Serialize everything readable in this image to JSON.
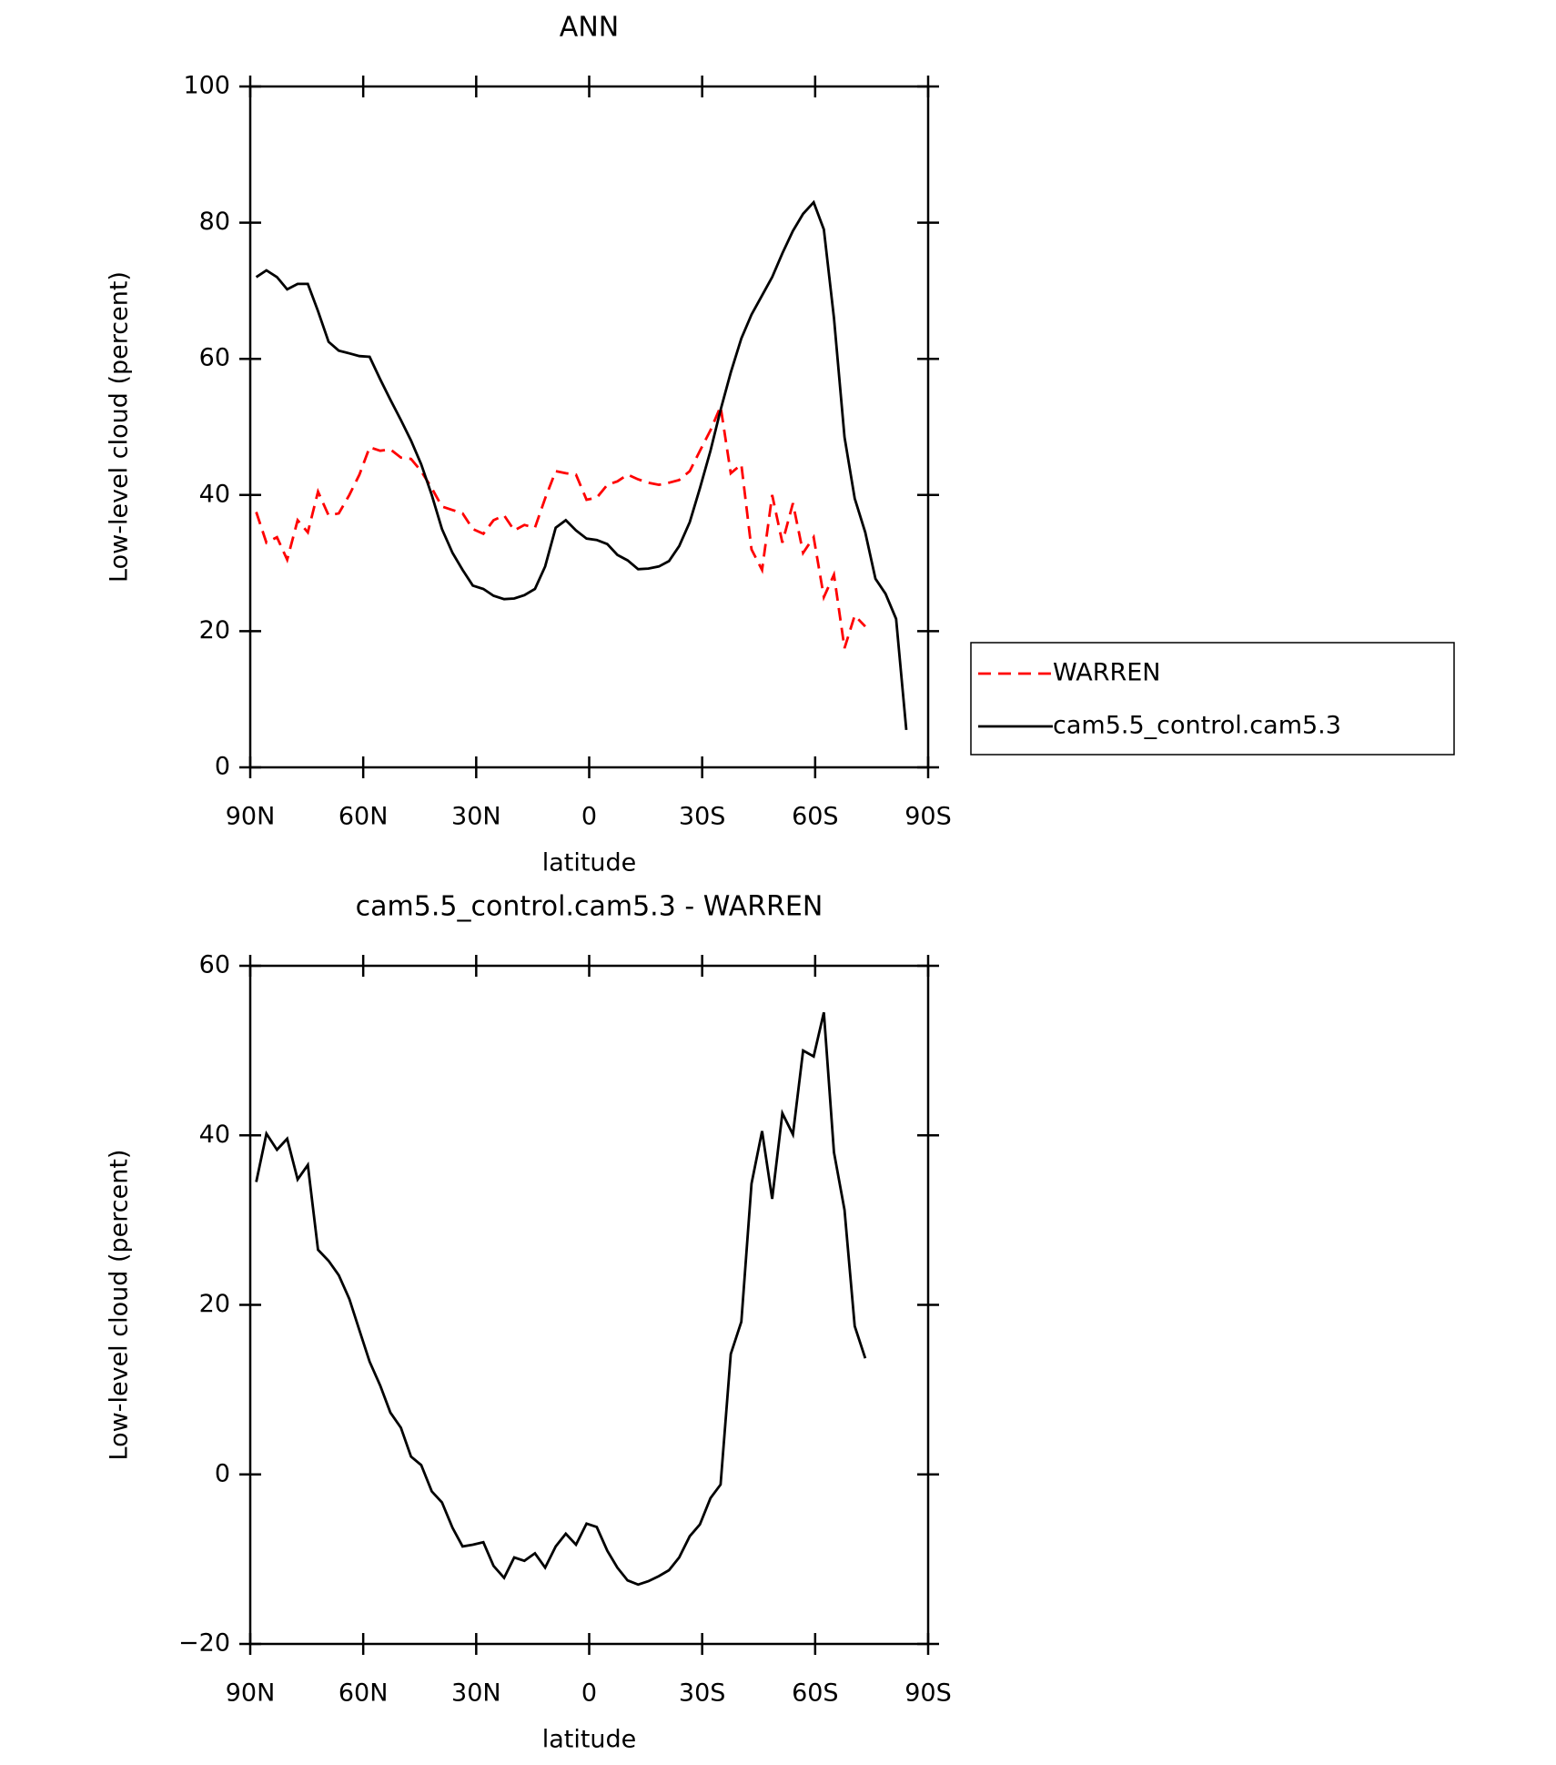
{
  "chart_data": [
    {
      "type": "line",
      "title": "ANN",
      "xlabel": "latitude",
      "ylabel": "Low-level cloud (percent)",
      "xlim": [
        90,
        -90
      ],
      "ylim": [
        0,
        100
      ],
      "xticks": [
        {
          "value": 90,
          "label": "90N"
        },
        {
          "value": 60,
          "label": "60N"
        },
        {
          "value": 30,
          "label": "30N"
        },
        0,
        {
          "value": -30,
          "label": "30S"
        },
        {
          "value": -60,
          "label": "60S"
        },
        {
          "value": -90,
          "label": "90S"
        }
      ],
      "yticks": [
        0,
        20,
        40,
        60,
        80,
        100
      ],
      "legend": "right",
      "x": [
        88.4,
        85.7,
        82.9,
        80.2,
        77.4,
        74.7,
        72.0,
        69.2,
        66.5,
        63.7,
        61.0,
        58.3,
        55.5,
        52.8,
        50.0,
        47.3,
        44.6,
        41.8,
        39.1,
        36.3,
        33.6,
        30.9,
        28.1,
        25.4,
        22.6,
        19.9,
        17.2,
        14.4,
        11.7,
        8.9,
        6.2,
        3.5,
        0.7,
        -2.0,
        -4.8,
        -7.5,
        -10.2,
        -13.0,
        -15.7,
        -18.5,
        -21.2,
        -23.9,
        -26.7,
        -29.4,
        -32.2,
        -34.9,
        -37.6,
        -40.4,
        -43.1,
        -45.9,
        -48.6,
        -51.3,
        -54.1,
        -56.8,
        -59.6,
        -62.3,
        -65.0,
        -67.8,
        -70.5,
        -73.3,
        -76.0,
        -78.7,
        -81.5,
        -84.2,
        -87.0
      ],
      "series": [
        {
          "name": "WARREN",
          "color": "#ff0000",
          "dashed": true,
          "values": [
            37.5,
            33,
            33.8,
            30.5,
            36.3,
            34.5,
            40.5,
            37,
            37.3,
            40,
            43,
            47,
            46.5,
            46.7,
            45.5,
            45.3,
            43.5,
            41,
            38.3,
            37.8,
            37.3,
            35,
            34.3,
            36.3,
            37,
            34.8,
            35.6,
            35.2,
            39.5,
            43.5,
            43.2,
            43,
            39.3,
            39.6,
            41.5,
            42,
            43,
            42.3,
            41.8,
            41.5,
            41.8,
            42.2,
            43.5,
            46.5,
            49.5,
            53,
            43.2,
            44.5,
            32,
            29,
            40,
            33,
            38.8,
            31.5,
            33.8,
            25,
            28.3,
            17.5,
            22.3,
            20.7,
            null,
            null,
            null,
            null,
            null
          ]
        },
        {
          "name": "cam5.5_control.cam5.3",
          "color": "#000000",
          "dashed": false,
          "values": [
            72,
            73,
            72,
            70.2,
            71,
            71,
            67,
            62.5,
            61.2,
            60.8,
            60.4,
            60.3,
            57,
            54,
            51,
            48,
            44.5,
            40,
            35,
            31.5,
            29,
            26.7,
            26.2,
            25.2,
            24.7,
            24.8,
            25.3,
            26.2,
            29.5,
            35.2,
            36.3,
            34.8,
            33.6,
            33.4,
            32.8,
            31.2,
            30.4,
            29.1,
            29.2,
            29.5,
            30.3,
            32.5,
            36,
            41,
            46.5,
            52.5,
            58,
            63,
            66.5,
            69.3,
            72,
            75.5,
            78.8,
            81.3,
            83,
            79,
            66,
            48.5,
            39.5,
            34.5,
            27.7,
            25.5,
            21.8,
            5.5,
            null
          ]
        }
      ]
    },
    {
      "type": "line",
      "title": "cam5.5_control.cam5.3 - WARREN",
      "xlabel": "latitude",
      "ylabel": "Low-level cloud (percent)",
      "xlim": [
        90,
        -90
      ],
      "ylim": [
        -20,
        60
      ],
      "xticks": [
        {
          "value": 90,
          "label": "90N"
        },
        {
          "value": 60,
          "label": "60N"
        },
        {
          "value": 30,
          "label": "30N"
        },
        0,
        {
          "value": -30,
          "label": "30S"
        },
        {
          "value": -60,
          "label": "60S"
        },
        {
          "value": -90,
          "label": "90S"
        }
      ],
      "yticks": [
        {
          "value": -20,
          "label": "−20"
        },
        0,
        20,
        40,
        60
      ],
      "color": "#000000",
      "x": [
        88.4,
        85.7,
        82.9,
        80.2,
        77.4,
        74.7,
        72.0,
        69.2,
        66.5,
        63.7,
        61.0,
        58.3,
        55.5,
        52.8,
        50.0,
        47.3,
        44.6,
        41.8,
        39.1,
        36.3,
        33.6,
        30.9,
        28.1,
        25.4,
        22.6,
        19.9,
        17.2,
        14.4,
        11.7,
        8.9,
        6.2,
        3.5,
        0.7,
        -2.0,
        -4.8,
        -7.5,
        -10.2,
        -13.0,
        -15.7,
        -18.5,
        -21.2,
        -23.9,
        -26.7,
        -29.4,
        -32.2,
        -34.9,
        -37.6,
        -40.4,
        -43.1,
        -45.9,
        -48.6,
        -51.3,
        -54.1,
        -56.8,
        -59.6,
        -62.3,
        -65.0,
        -67.8,
        -70.5,
        -73.3,
        -76.0,
        -78.7,
        -81.5,
        -84.2,
        -87.0
      ],
      "values": [
        34.5,
        40.2,
        38.3,
        39.6,
        34.8,
        36.5,
        26.5,
        25.2,
        23.5,
        20.7,
        17,
        13.3,
        10.5,
        7.3,
        5.5,
        2.1,
        1.1,
        -2,
        -3.3,
        -6.3,
        -8.5,
        -8.3,
        -8,
        -10.8,
        -12.2,
        -9.8,
        -10.2,
        -9.3,
        -11,
        -8.5,
        -7,
        -8.3,
        -5.8,
        -6.2,
        -9,
        -11,
        -12.5,
        -13,
        -12.6,
        -12,
        -11.3,
        -9.8,
        -7.3,
        -5.9,
        -2.8,
        -1.2,
        14.2,
        18,
        34.3,
        40.5,
        32.5,
        42.6,
        40.1,
        50,
        49.3,
        54.5,
        38,
        31.2,
        17.5,
        13.7,
        null,
        null,
        null,
        null,
        null
      ]
    }
  ]
}
